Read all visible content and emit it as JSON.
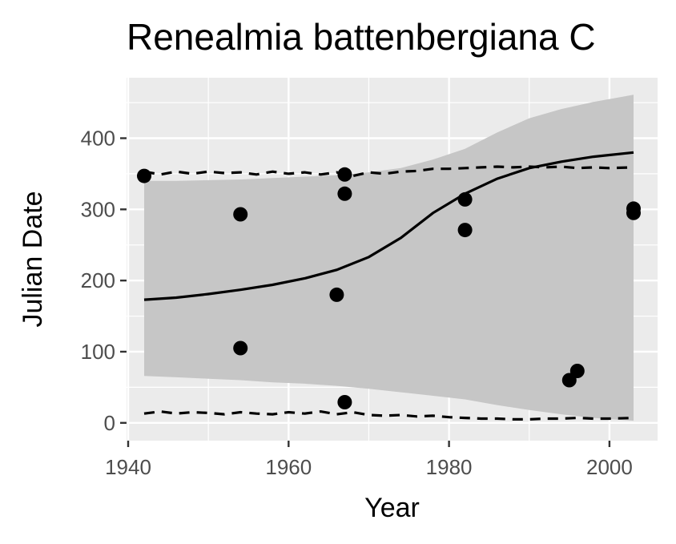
{
  "chart_data": {
    "type": "scatter",
    "title": "Renealmia battenbergiana C",
    "xlabel": "Year",
    "ylabel": "Julian Date",
    "xlim": [
      1939.8,
      2006
    ],
    "ylim": [
      -25,
      485
    ],
    "x_ticks": [
      1940,
      1960,
      1980,
      2000
    ],
    "y_ticks": [
      0,
      100,
      200,
      300,
      400
    ],
    "grid": true,
    "colors": {
      "panel": "#ebebeb",
      "grid": "#ffffff",
      "ribbon": "#c6c6c6",
      "points": "#000000",
      "line": "#000000"
    },
    "points": [
      {
        "x": 1942,
        "y": 347
      },
      {
        "x": 1954,
        "y": 293
      },
      {
        "x": 1954,
        "y": 105
      },
      {
        "x": 1966,
        "y": 180
      },
      {
        "x": 1967,
        "y": 349
      },
      {
        "x": 1967,
        "y": 322
      },
      {
        "x": 1967,
        "y": 29
      },
      {
        "x": 1982,
        "y": 314
      },
      {
        "x": 1982,
        "y": 271
      },
      {
        "x": 1995,
        "y": 60
      },
      {
        "x": 1996,
        "y": 73
      },
      {
        "x": 2003,
        "y": 301
      },
      {
        "x": 2003,
        "y": 295
      }
    ],
    "fit_line": {
      "x": [
        1942,
        1946,
        1950,
        1954,
        1958,
        1962,
        1966,
        1970,
        1974,
        1978,
        1982,
        1986,
        1990,
        1994,
        1998,
        2003
      ],
      "y": [
        173,
        176,
        181,
        187,
        194,
        203,
        215,
        233,
        260,
        295,
        322,
        343,
        358,
        367,
        374,
        380
      ]
    },
    "ribbon": {
      "x": [
        1942,
        1946,
        1950,
        1954,
        1958,
        1962,
        1966,
        1970,
        1974,
        1978,
        1982,
        1986,
        1990,
        1994,
        1998,
        2003
      ],
      "upper": [
        340,
        340,
        341,
        342,
        344,
        346,
        348,
        352,
        358,
        370,
        385,
        408,
        428,
        441,
        451,
        461
      ],
      "lower": [
        66,
        64,
        62,
        60,
        57,
        55,
        52,
        48,
        43,
        38,
        33,
        25,
        18,
        12,
        7,
        3
      ]
    },
    "dashed_upper": {
      "x": [
        1942,
        1944,
        1946,
        1948,
        1950,
        1952,
        1954,
        1956,
        1958,
        1960,
        1962,
        1964,
        1966,
        1968,
        1970,
        1972,
        1974,
        1976,
        1978,
        1980,
        1982,
        1984,
        1986,
        1988,
        1990,
        1992,
        1994,
        1996,
        1998,
        2000,
        2003
      ],
      "y": [
        353,
        349,
        353,
        350,
        353,
        351,
        352,
        349,
        353,
        350,
        352,
        349,
        352,
        347,
        352,
        350,
        353,
        354,
        357,
        357,
        358,
        359,
        360,
        359,
        360,
        359,
        360,
        358,
        359,
        358,
        359
      ]
    },
    "dashed_lower": {
      "x": [
        1942,
        1944,
        1946,
        1948,
        1950,
        1952,
        1954,
        1956,
        1958,
        1960,
        1962,
        1964,
        1966,
        1968,
        1970,
        1972,
        1974,
        1976,
        1978,
        1980,
        1982,
        1984,
        1986,
        1988,
        1990,
        1992,
        1994,
        1996,
        1998,
        2000,
        2003
      ],
      "y": [
        13,
        16,
        13,
        15,
        14,
        12,
        15,
        13,
        12,
        15,
        13,
        16,
        12,
        15,
        11,
        10,
        11,
        9,
        10,
        8,
        7,
        6,
        6,
        5,
        5,
        6,
        6,
        7,
        6,
        6,
        7
      ]
    }
  }
}
